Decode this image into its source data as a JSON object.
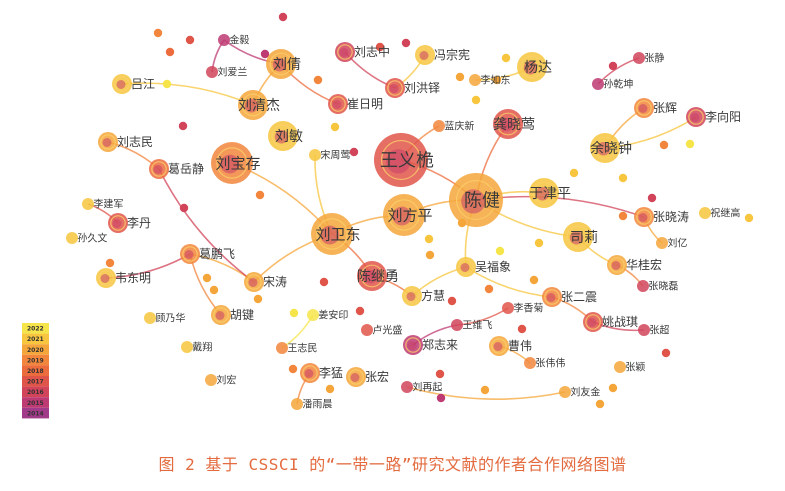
{
  "caption": "图 2 基于 CSSCI 的“一带一路”研究文献的作者合作网络图谱",
  "legend": {
    "years": [
      "2022",
      "2021",
      "2020",
      "2019",
      "2018",
      "2017",
      "2016",
      "2015",
      "2014"
    ],
    "colors": [
      "#f6e54a",
      "#f7c63e",
      "#f5a63a",
      "#f2863c",
      "#ec6c3e",
      "#e0554a",
      "#d1445a",
      "#bd3a72",
      "#a23a8a"
    ]
  },
  "nodes": [
    {
      "id": "wangyihao",
      "label": "王义桅",
      "size": "xl",
      "color": "#e0554a"
    },
    {
      "id": "chenjian",
      "label": "陈健",
      "size": "xl",
      "color": "#f5a63a"
    },
    {
      "id": "liufangping",
      "label": "刘方平",
      "size": "l",
      "color": "#f5a63a"
    },
    {
      "id": "liuweidong",
      "label": "刘卫东",
      "size": "l",
      "color": "#f5a63a"
    },
    {
      "id": "liubaocun",
      "label": "刘宝存",
      "size": "l",
      "color": "#f2863c"
    },
    {
      "id": "liuqingjie",
      "label": "刘清杰",
      "size": "m",
      "color": "#f5a63a"
    },
    {
      "id": "liumin",
      "label": "刘敏",
      "size": "m",
      "color": "#f7c63e"
    },
    {
      "id": "liuqian",
      "label": "刘倩",
      "size": "m",
      "color": "#f5a63a"
    },
    {
      "id": "yangda",
      "label": "杨达",
      "size": "m",
      "color": "#f7c63e"
    },
    {
      "id": "gongxiaoying",
      "label": "龚晓莺",
      "size": "m",
      "color": "#e0554a"
    },
    {
      "id": "yuxiaozhong",
      "label": "余晓钟",
      "size": "m",
      "color": "#f7c63e"
    },
    {
      "id": "yujinping",
      "label": "于津平",
      "size": "m",
      "color": "#f7c63e"
    },
    {
      "id": "chenjiyong",
      "label": "陈继勇",
      "size": "m",
      "color": "#e0554a"
    },
    {
      "id": "sili",
      "label": "司莉",
      "size": "m",
      "color": "#f7c63e"
    },
    {
      "id": "fenzongxian",
      "label": "冯宗宪",
      "size": "s",
      "color": "#f7c63e"
    },
    {
      "id": "zhanghui",
      "label": "张辉",
      "size": "s",
      "color": "#f2863c"
    },
    {
      "id": "liuzhimin",
      "label": "刘志民",
      "size": "s",
      "color": "#f5a63a"
    },
    {
      "id": "geyuejing",
      "label": "葛岳静",
      "size": "s",
      "color": "#ec6c3e"
    },
    {
      "id": "lvjiang",
      "label": "吕江",
      "size": "s",
      "color": "#f7c63e"
    },
    {
      "id": "cuiriming",
      "label": "崔日明",
      "size": "s",
      "color": "#e0554a"
    },
    {
      "id": "liuhongduo",
      "label": "刘洪铎",
      "size": "s",
      "color": "#e0554a"
    },
    {
      "id": "liuzhizhong",
      "label": "刘志中",
      "size": "s",
      "color": "#d1445a"
    },
    {
      "id": "lirudong",
      "label": "李如东",
      "size": "xs",
      "color": "#f5a63a"
    },
    {
      "id": "lanqingxin",
      "label": "蓝庆新",
      "size": "xs",
      "color": "#f2863c"
    },
    {
      "id": "songzhouying",
      "label": "宋周莺",
      "size": "xs",
      "color": "#f7c63e"
    },
    {
      "id": "jinyi",
      "label": "金毅",
      "size": "xs",
      "color": "#bd3a72"
    },
    {
      "id": "liuailan",
      "label": "刘爱兰",
      "size": "xs",
      "color": "#d1445a"
    },
    {
      "id": "zhangjing",
      "label": "张静",
      "size": "xs",
      "color": "#d1445a"
    },
    {
      "id": "sunqiankun",
      "label": "孙乾坤",
      "size": "xs",
      "color": "#bd3a72"
    },
    {
      "id": "lixiangyang",
      "label": "李向阳",
      "size": "s",
      "color": "#d1445a"
    },
    {
      "id": "lijianjun",
      "label": "李建军",
      "size": "xs",
      "color": "#f7c63e"
    },
    {
      "id": "lidan",
      "label": "李丹",
      "size": "s",
      "color": "#e0554a"
    },
    {
      "id": "sunjiuwen",
      "label": "孙久文",
      "size": "xs",
      "color": "#f7c63e"
    },
    {
      "id": "gepengfei",
      "label": "葛鹏飞",
      "size": "s",
      "color": "#f2863c"
    },
    {
      "id": "weidongming",
      "label": "韦东明",
      "size": "s",
      "color": "#f7c63e"
    },
    {
      "id": "songtao",
      "label": "宋涛",
      "size": "s",
      "color": "#f5a63a"
    },
    {
      "id": "gunaihua",
      "label": "顾乃华",
      "size": "xs",
      "color": "#f7c63e"
    },
    {
      "id": "hujian",
      "label": "胡键",
      "size": "s",
      "color": "#f5a63a"
    },
    {
      "id": "daixiang",
      "label": "戴翔",
      "size": "xs",
      "color": "#f7c63e"
    },
    {
      "id": "liuhong",
      "label": "刘宏",
      "size": "xs",
      "color": "#f5a63a"
    },
    {
      "id": "jiananyin",
      "label": "姜安印",
      "size": "xs",
      "color": "#f6e54a"
    },
    {
      "id": "wangzhimin",
      "label": "王志民",
      "size": "xs",
      "color": "#f2863c"
    },
    {
      "id": "limeng",
      "label": "李猛",
      "size": "s",
      "color": "#f2863c"
    },
    {
      "id": "panyuchen",
      "label": "潘雨晨",
      "size": "xs",
      "color": "#f5a63a"
    },
    {
      "id": "zhanghong",
      "label": "张宏",
      "size": "s",
      "color": "#f5a63a"
    },
    {
      "id": "luguangsheng",
      "label": "卢光盛",
      "size": "xs",
      "color": "#e0554a"
    },
    {
      "id": "zhenglailai",
      "label": "郑志来",
      "size": "s",
      "color": "#bd3a72"
    },
    {
      "id": "liuzaiqi",
      "label": "刘再起",
      "size": "xs",
      "color": "#d1445a"
    },
    {
      "id": "wuxiang",
      "label": "吴福象",
      "size": "s",
      "color": "#f7c63e"
    },
    {
      "id": "fanghui",
      "label": "方慧",
      "size": "s",
      "color": "#f7c63e"
    },
    {
      "id": "lixiangju",
      "label": "李香菊",
      "size": "xs",
      "color": "#e0554a"
    },
    {
      "id": "wangweifei",
      "label": "王维飞",
      "size": "xs",
      "color": "#d1445a"
    },
    {
      "id": "caowei",
      "label": "曹伟",
      "size": "s",
      "color": "#f5a63a"
    },
    {
      "id": "zhangerzhen",
      "label": "张二震",
      "size": "s",
      "color": "#f2863c"
    },
    {
      "id": "yaozhanqi",
      "label": "姚战琪",
      "size": "s",
      "color": "#e0554a"
    },
    {
      "id": "zhangweiwei",
      "label": "张伟伟",
      "size": "xs",
      "color": "#f2863c"
    },
    {
      "id": "liuyoujin",
      "label": "刘友金",
      "size": "xs",
      "color": "#f5a63a"
    },
    {
      "id": "zhangying",
      "label": "张颖",
      "size": "xs",
      "color": "#f5a63a"
    },
    {
      "id": "zhangchao",
      "label": "张超",
      "size": "xs",
      "color": "#d1445a"
    },
    {
      "id": "huaguihong",
      "label": "华桂宏",
      "size": "s",
      "color": "#f5a63a"
    },
    {
      "id": "zhangxiaolei",
      "label": "张晓磊",
      "size": "xs",
      "color": "#d1445a"
    },
    {
      "id": "zhangxiaotao",
      "label": "张晓涛",
      "size": "s",
      "color": "#f2863c"
    },
    {
      "id": "liuyi",
      "label": "刘亿",
      "size": "xs",
      "color": "#f5a63a"
    },
    {
      "id": "zhujigao",
      "label": "祝继高",
      "size": "xs",
      "color": "#f7c63e"
    }
  ]
}
